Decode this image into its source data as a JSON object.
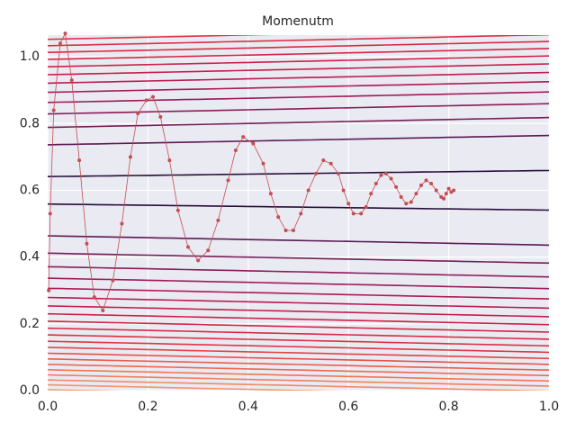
{
  "chart_data": {
    "type": "line",
    "title": "Momenutm",
    "x": [
      0.002,
      0.005,
      0.012,
      0.025,
      0.035,
      0.048,
      0.063,
      0.078,
      0.093,
      0.11,
      0.13,
      0.148,
      0.165,
      0.18,
      0.197,
      0.21,
      0.225,
      0.243,
      0.26,
      0.28,
      0.3,
      0.32,
      0.34,
      0.36,
      0.375,
      0.39,
      0.41,
      0.43,
      0.445,
      0.46,
      0.475,
      0.49,
      0.505,
      0.52,
      0.535,
      0.55,
      0.565,
      0.58,
      0.59,
      0.6,
      0.61,
      0.625,
      0.635,
      0.645,
      0.655,
      0.665,
      0.675,
      0.685,
      0.695,
      0.705,
      0.715,
      0.725,
      0.735,
      0.745,
      0.755,
      0.765,
      0.775,
      0.785,
      0.79,
      0.795,
      0.8,
      0.805,
      0.81
    ],
    "series": [
      {
        "name": "Momenutm",
        "color": "#c44e52",
        "values": [
          0.3,
          0.53,
          0.84,
          1.04,
          1.07,
          0.93,
          0.69,
          0.44,
          0.28,
          0.24,
          0.33,
          0.5,
          0.7,
          0.83,
          0.87,
          0.88,
          0.82,
          0.69,
          0.54,
          0.43,
          0.39,
          0.42,
          0.51,
          0.63,
          0.72,
          0.76,
          0.74,
          0.68,
          0.59,
          0.52,
          0.48,
          0.48,
          0.53,
          0.6,
          0.65,
          0.69,
          0.68,
          0.65,
          0.6,
          0.56,
          0.53,
          0.53,
          0.55,
          0.59,
          0.62,
          0.645,
          0.65,
          0.635,
          0.61,
          0.58,
          0.56,
          0.565,
          0.59,
          0.615,
          0.63,
          0.62,
          0.6,
          0.58,
          0.575,
          0.59,
          0.605,
          0.595,
          0.6
        ]
      }
    ],
    "xlim": [
      0,
      1
    ],
    "ylim": [
      0,
      1.065
    ],
    "xticks": [
      {
        "value": 0,
        "label": "0.0"
      },
      0.2,
      0.4,
      0.6,
      0.8,
      {
        "value": 1,
        "label": "1.0"
      }
    ],
    "yticks": [
      {
        "value": 0,
        "label": "0.0"
      },
      0.2,
      0.4,
      0.6,
      0.8,
      {
        "value": 1,
        "label": "1.0"
      }
    ],
    "grid": true
  }
}
